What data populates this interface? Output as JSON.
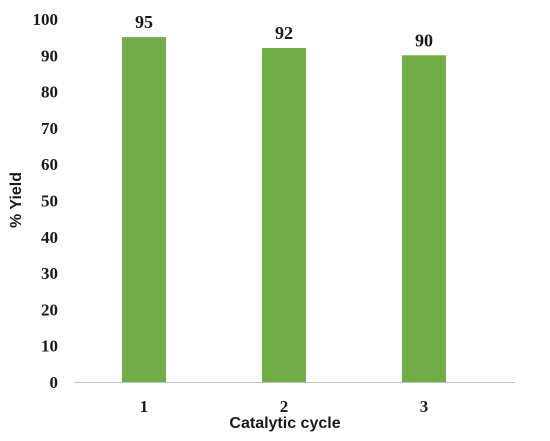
{
  "chart_data": {
    "type": "bar",
    "categories": [
      "1",
      "2",
      "3"
    ],
    "values": [
      95,
      92,
      90
    ],
    "data_labels": [
      "95",
      "92",
      "90"
    ],
    "xlabel": "Catalytic cycle",
    "ylabel": "% Yield",
    "ylim": [
      0,
      100
    ],
    "yticks": [
      0,
      10,
      20,
      30,
      40,
      50,
      60,
      70,
      80,
      90,
      100
    ],
    "grid": false,
    "legend": "none",
    "colors": {
      "bar": "#70ad47",
      "axis": "#bfbfbf",
      "text": "#1a1a1a"
    }
  }
}
